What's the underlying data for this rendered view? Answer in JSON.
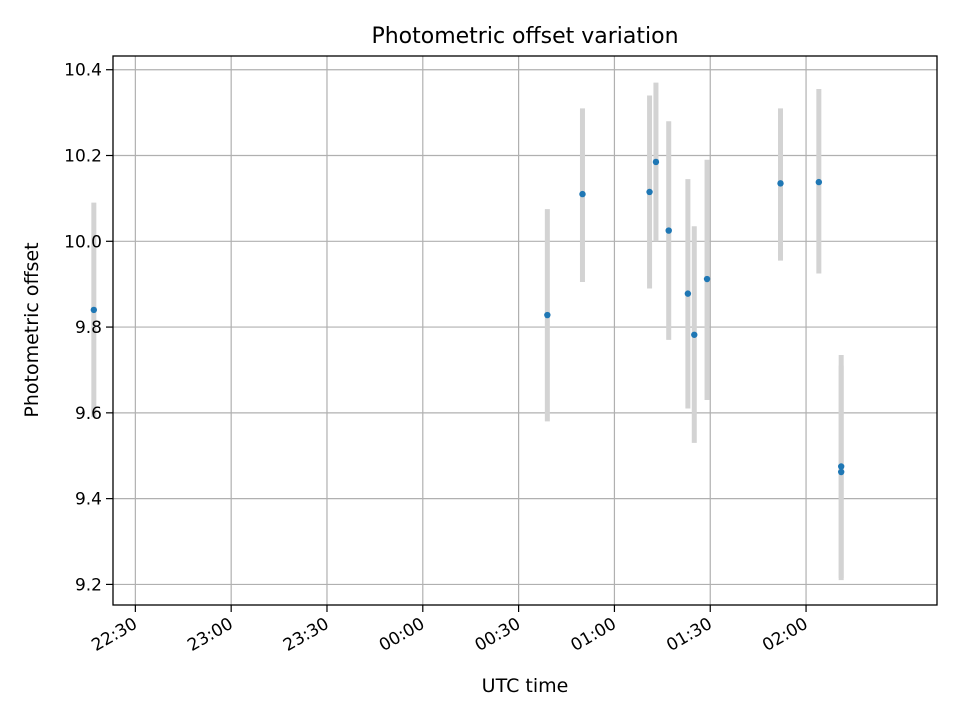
{
  "chart_data": {
    "type": "scatter",
    "title": "Photometric offset variation",
    "xlabel": "UTC time",
    "ylabel": "Photometric offset",
    "x_ticks": [
      "22:30",
      "23:00",
      "23:30",
      "00:00",
      "00:30",
      "01:00",
      "01:30",
      "02:00"
    ],
    "x_range": [
      "22:23",
      "02:41"
    ],
    "y_ticks": [
      "9.2",
      "9.4",
      "9.6",
      "9.8",
      "10.0",
      "10.2",
      "10.4"
    ],
    "ylim": [
      9.152,
      10.432
    ],
    "grid": true,
    "marker_color": "#1f77b4",
    "errorbar_color": "#d3d3d3",
    "points": [
      {
        "time": "22:17",
        "y": 9.84,
        "err_low": 9.59,
        "err_high": 10.09
      },
      {
        "time": "00:39",
        "y": 9.828,
        "err_low": 9.58,
        "err_high": 10.075
      },
      {
        "time": "00:50",
        "y": 10.11,
        "err_low": 9.905,
        "err_high": 10.31
      },
      {
        "time": "01:11",
        "y": 10.115,
        "err_low": 9.89,
        "err_high": 10.34
      },
      {
        "time": "01:13",
        "y": 10.185,
        "err_low": 10.0,
        "err_high": 10.37
      },
      {
        "time": "01:17",
        "y": 10.025,
        "err_low": 9.77,
        "err_high": 10.28
      },
      {
        "time": "01:23",
        "y": 9.878,
        "err_low": 9.61,
        "err_high": 10.145
      },
      {
        "time": "01:25",
        "y": 9.782,
        "err_low": 9.53,
        "err_high": 10.035
      },
      {
        "time": "01:29",
        "y": 9.912,
        "err_low": 9.63,
        "err_high": 10.19
      },
      {
        "time": "01:52",
        "y": 10.135,
        "err_low": 9.955,
        "err_high": 10.31
      },
      {
        "time": "02:04",
        "y": 10.138,
        "err_low": 9.925,
        "err_high": 10.355
      },
      {
        "time": "02:11",
        "y": 9.462,
        "err_low": 9.21,
        "err_high": 9.71
      },
      {
        "time": "02:11",
        "y": 9.475,
        "err_low": 9.215,
        "err_high": 9.735
      }
    ]
  }
}
